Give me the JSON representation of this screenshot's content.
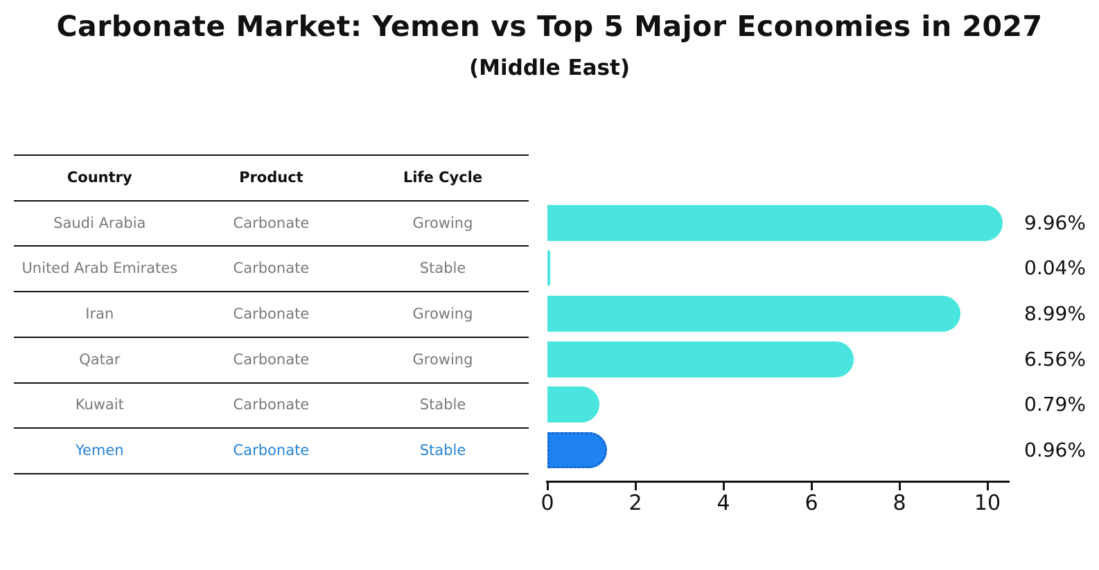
{
  "chart_data": {
    "type": "bar",
    "orientation": "horizontal",
    "title": "Carbonate Market: Yemen vs Top 5 Major Economies in 2027",
    "subtitle": "(Middle East)",
    "categories": [
      "Saudi Arabia",
      "United Arab Emirates",
      "Iran",
      "Qatar",
      "Kuwait",
      "Yemen"
    ],
    "values": [
      9.96,
      0.04,
      8.99,
      6.56,
      0.79,
      0.96
    ],
    "value_labels": [
      "9.96%",
      "0.04%",
      "8.99%",
      "6.56%",
      "0.79%",
      "0.96%"
    ],
    "x_ticks": [
      "0",
      "2",
      "4",
      "6",
      "8",
      "10"
    ],
    "xlim": [
      0,
      10.5
    ],
    "grid": false,
    "legend": false,
    "bar_color": "#4BE5DF",
    "highlight_index": 5,
    "highlight_bar_color": "#1E82F0",
    "highlight_border_color": "#1663CC",
    "axis_color": "#111111",
    "value_label_color": "#111111"
  },
  "table": {
    "headers": [
      "Country",
      "Product",
      "Life Cycle"
    ],
    "rows": [
      {
        "country": "Saudi Arabia",
        "product": "Carbonate",
        "life_cycle": "Growing",
        "highlight": false
      },
      {
        "country": "United Arab Emirates",
        "product": "Carbonate",
        "life_cycle": "Stable",
        "highlight": false
      },
      {
        "country": "Iran",
        "product": "Carbonate",
        "life_cycle": "Growing",
        "highlight": false
      },
      {
        "country": "Qatar",
        "product": "Carbonate",
        "life_cycle": "Growing",
        "highlight": false
      },
      {
        "country": "Kuwait",
        "product": "Carbonate",
        "life_cycle": "Stable",
        "highlight": false
      },
      {
        "country": "Yemen",
        "product": "Carbonate",
        "life_cycle": "Stable",
        "highlight": true
      }
    ],
    "body_text_color": "#7a7a7a",
    "header_text_color": "#111111",
    "highlight_text_color": "#2484D6"
  }
}
